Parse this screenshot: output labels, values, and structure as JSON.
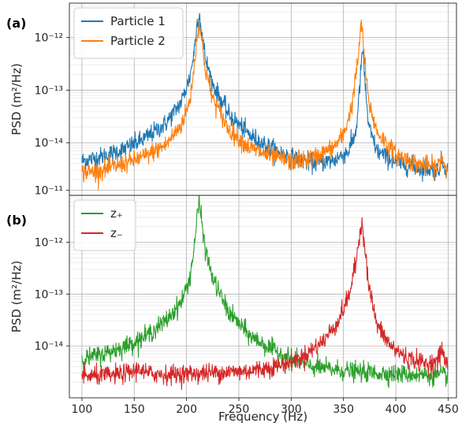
{
  "chart_data": [
    {
      "panel": "(a)",
      "type": "line",
      "xlabel": "",
      "ylabel": "PSD (m²/Hz)",
      "xlim": [
        88,
        458
      ],
      "ylim": [
        1e-15,
        4.5e-12
      ],
      "yscale": "log",
      "grid": true,
      "legend": "top-left",
      "x_ticks": [
        100,
        150,
        200,
        250,
        300,
        350,
        400,
        450
      ],
      "y_ticks": [
        {
          "value": 1e-14,
          "label": "10⁻¹⁴"
        },
        {
          "value": 1e-13,
          "label": "10⁻¹³"
        },
        {
          "value": 1e-12,
          "label": "10⁻¹²"
        }
      ],
      "series": [
        {
          "name": "Particle 1",
          "color": "#1f77b4",
          "x": [
            100,
            120,
            140,
            160,
            180,
            195,
            203,
            207,
            210,
            212,
            214,
            218,
            225,
            240,
            260,
            280,
            300,
            320,
            340,
            355,
            362,
            366,
            368,
            370,
            374,
            382,
            400,
            420,
            440,
            444,
            446,
            450
          ],
          "y": [
            4.5e-15,
            5.5e-15,
            7.5e-15,
            1.2e-14,
            2.3e-14,
            6e-14,
            1.7e-13,
            5e-13,
            1.8e-12,
            3e-12,
            1.5e-12,
            4e-13,
            1.3e-13,
            3.5e-14,
            1.4e-14,
            8e-15,
            5.2e-15,
            4.2e-15,
            4.5e-15,
            7e-15,
            1.6e-14,
            1.5e-13,
            6.5e-13,
            2e-13,
            2e-14,
            7e-15,
            4.2e-15,
            3.4e-15,
            3e-15,
            4.5e-15,
            3.8e-15,
            2.9e-15
          ]
        },
        {
          "name": "Particle 2",
          "color": "#ff7f0e",
          "x": [
            100,
            120,
            140,
            160,
            180,
            195,
            203,
            207,
            210,
            212,
            214,
            218,
            225,
            240,
            260,
            280,
            300,
            320,
            340,
            350,
            358,
            364,
            367,
            368,
            370,
            374,
            382,
            400,
            420,
            440,
            444,
            446,
            450
          ],
          "y": [
            2.7e-15,
            3e-15,
            4e-15,
            5.5e-15,
            9e-15,
            2.2e-14,
            6e-14,
            2.5e-13,
            1e-12,
            2e-12,
            1e-12,
            2.5e-13,
            7e-14,
            1.8e-14,
            8e-15,
            5.5e-15,
            4.5e-15,
            5e-15,
            8e-15,
            1.4e-14,
            5e-14,
            4e-13,
            1.8e-12,
            1.5e-12,
            4e-13,
            6e-14,
            1.6e-14,
            6e-15,
            4e-15,
            3.4e-15,
            5.5e-15,
            4e-15,
            2.9e-15
          ]
        }
      ]
    },
    {
      "panel": "(b)",
      "type": "line",
      "xlabel": "Frequency (Hz)",
      "ylabel": "PSD (m²/Hz)",
      "xlim": [
        88,
        458
      ],
      "ylim": [
        1e-15,
        8e-12
      ],
      "yscale": "log",
      "grid": true,
      "legend": "top-left",
      "x_ticks": [
        100,
        150,
        200,
        250,
        300,
        350,
        400,
        450
      ],
      "y_ticks": [
        {
          "value": 1e-14,
          "label": "10⁻¹⁴"
        },
        {
          "value": 1e-13,
          "label": "10⁻¹³"
        },
        {
          "value": 1e-12,
          "label": "10⁻¹²"
        },
        {
          "value": 1e-11,
          "label": "10⁻¹¹"
        }
      ],
      "series": [
        {
          "name": "z₊",
          "color": "#2ca02c",
          "x": [
            100,
            120,
            140,
            160,
            180,
            195,
            203,
            207,
            210,
            212,
            214,
            218,
            225,
            240,
            260,
            280,
            300,
            320,
            340,
            360,
            380,
            400,
            420,
            440,
            450
          ],
          "y": [
            5.5e-15,
            7e-15,
            9.5e-15,
            1.5e-14,
            3e-14,
            7e-14,
            2e-13,
            7e-13,
            3e-12,
            6e-12,
            3e-12,
            7e-13,
            2e-13,
            4.5e-14,
            1.6e-14,
            9e-15,
            5.5e-15,
            4e-15,
            3.5e-15,
            3.2e-15,
            3e-15,
            2.9e-15,
            2.8e-15,
            2.7e-15,
            2.7e-15
          ]
        },
        {
          "name": "z₋",
          "color": "#d62728",
          "x": [
            100,
            130,
            150,
            155,
            160,
            180,
            220,
            260,
            290,
            310,
            330,
            345,
            355,
            362,
            366,
            368,
            370,
            374,
            382,
            395,
            410,
            430,
            440,
            444,
            446,
            450
          ],
          "y": [
            2.6e-15,
            2.7e-15,
            3.2e-15,
            3.8e-15,
            3e-15,
            2.8e-15,
            3e-15,
            3.3e-15,
            4.2e-15,
            6e-15,
            1.2e-14,
            3e-14,
            9e-14,
            4e-13,
            1.8e-12,
            2.3e-12,
            1e-12,
            1.5e-13,
            2.5e-14,
            1e-14,
            6e-15,
            4.5e-15,
            5e-15,
            9e-15,
            6e-15,
            3.8e-15
          ]
        }
      ]
    }
  ]
}
